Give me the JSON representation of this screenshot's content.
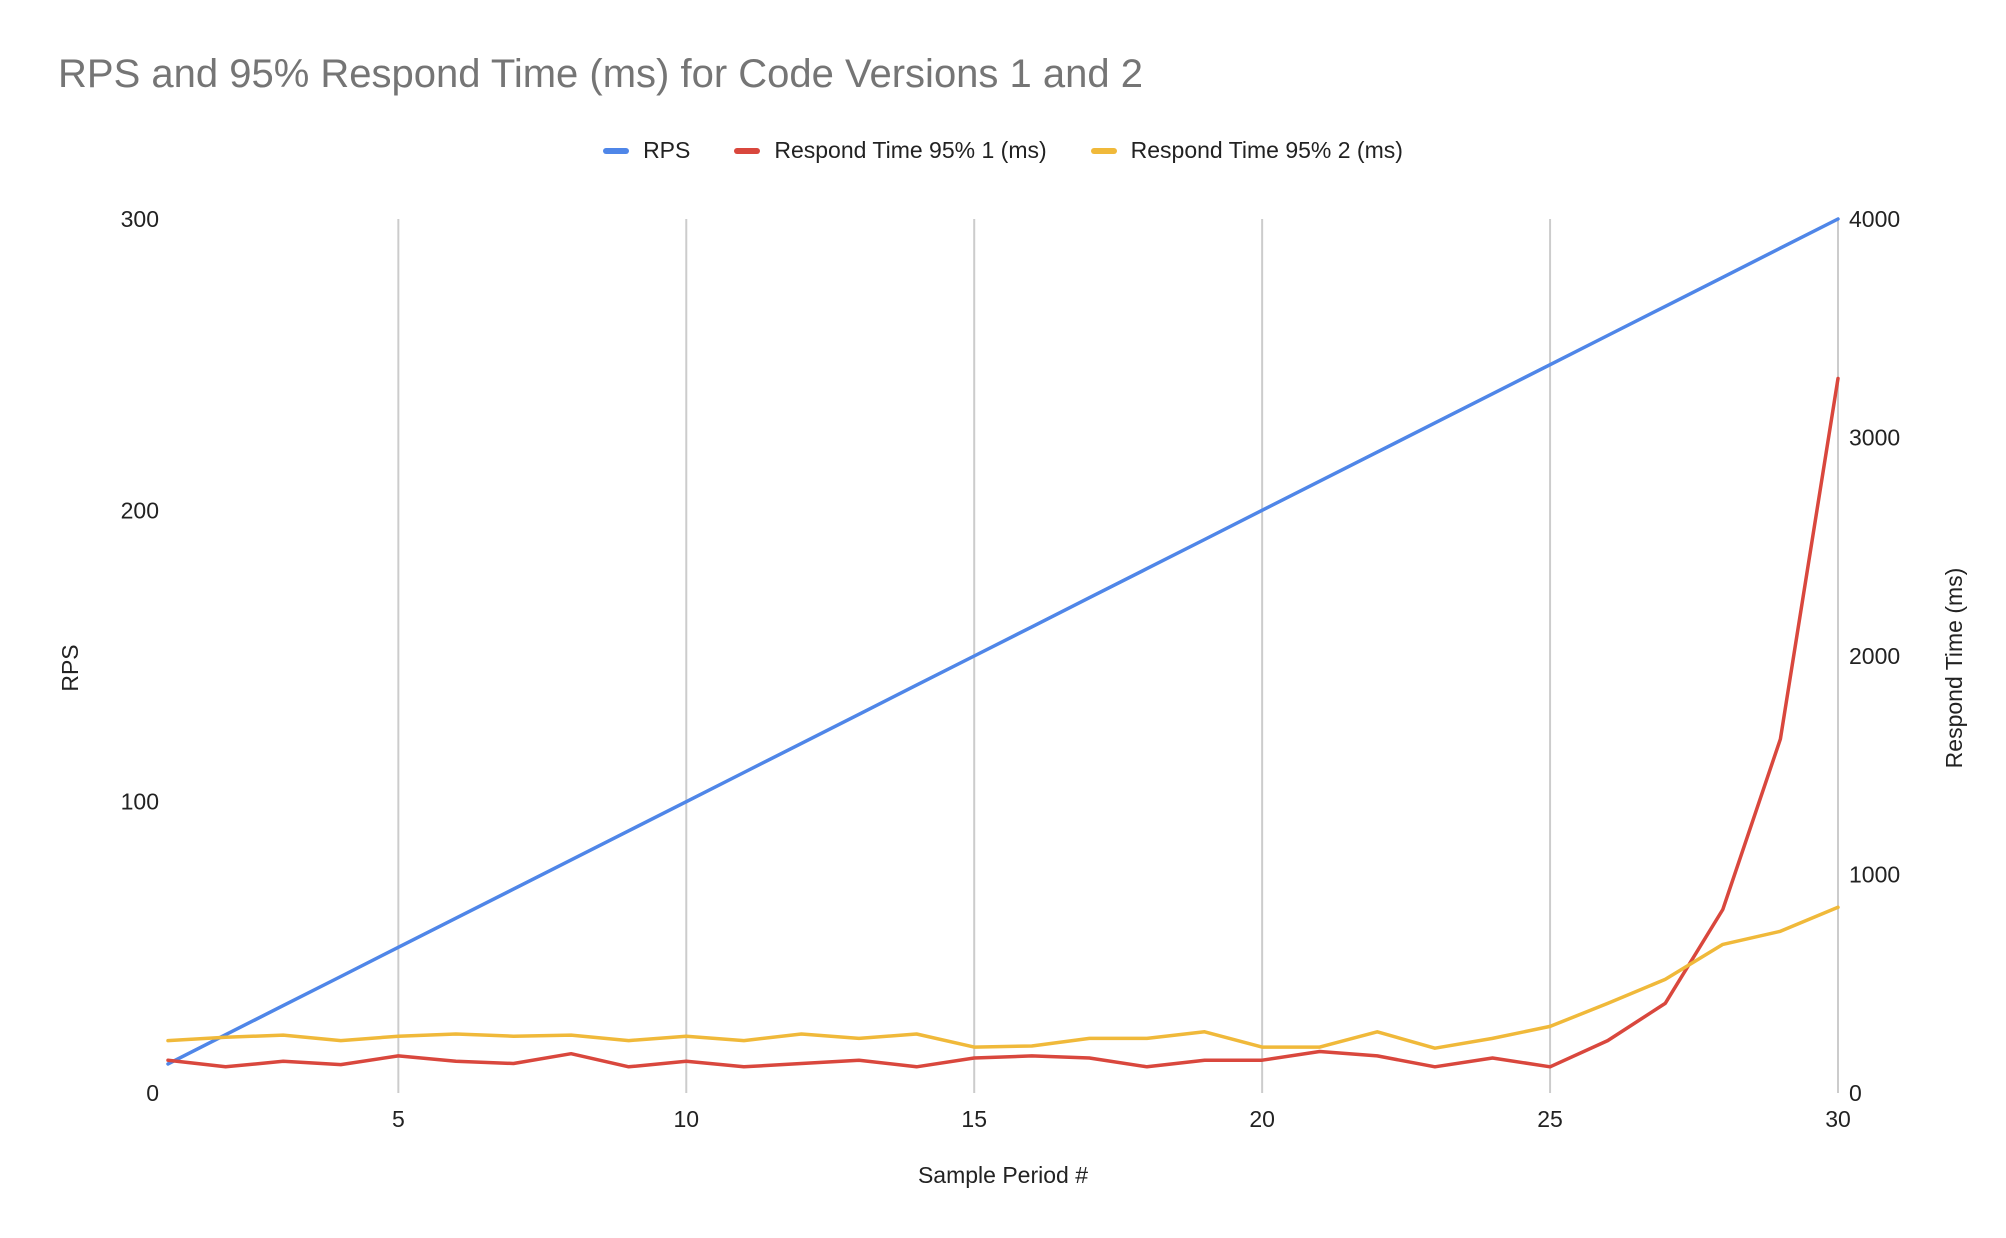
{
  "chart_data": {
    "type": "line",
    "title": "RPS and 95% Respond Time (ms) for Code Versions 1 and 2",
    "xlabel": "Sample Period #",
    "ylabel_left": "RPS",
    "ylabel_right": "Respond Time (ms)",
    "xlim": [
      1,
      30
    ],
    "ylim_left": [
      0,
      300
    ],
    "ylim_right": [
      0,
      4000
    ],
    "x_ticks": [
      5,
      10,
      15,
      20,
      25,
      30
    ],
    "y_left_ticks": [
      0,
      100,
      200,
      300
    ],
    "y_right_ticks": [
      0,
      1000,
      2000,
      3000,
      4000
    ],
    "grid": "vertical",
    "legend_position": "top-center",
    "x": [
      1,
      2,
      3,
      4,
      5,
      6,
      7,
      8,
      9,
      10,
      11,
      12,
      13,
      14,
      15,
      16,
      17,
      18,
      19,
      20,
      21,
      22,
      23,
      24,
      25,
      26,
      27,
      28,
      29,
      30
    ],
    "series": [
      {
        "name": "RPS",
        "axis": "left",
        "color": "#4f86e8",
        "values": [
          10,
          20,
          30,
          40,
          50,
          60,
          70,
          80,
          90,
          100,
          110,
          120,
          130,
          140,
          150,
          160,
          170,
          180,
          190,
          200,
          210,
          220,
          230,
          240,
          250,
          260,
          270,
          280,
          290,
          300
        ]
      },
      {
        "name": "Respond Time 95% 1 (ms)",
        "axis": "right",
        "color": "#d9473d",
        "values": [
          150,
          120,
          145,
          130,
          170,
          145,
          135,
          180,
          120,
          145,
          120,
          135,
          150,
          120,
          160,
          170,
          160,
          120,
          150,
          150,
          190,
          170,
          120,
          160,
          120,
          240,
          410,
          840,
          1620,
          3270
        ]
      },
      {
        "name": "Respond Time 95% 2 (ms)",
        "axis": "right",
        "color": "#f0b93a",
        "values": [
          240,
          255,
          265,
          240,
          260,
          270,
          260,
          265,
          240,
          260,
          240,
          270,
          250,
          270,
          210,
          215,
          250,
          250,
          280,
          210,
          210,
          280,
          205,
          250,
          305,
          410,
          520,
          680,
          740,
          850
        ]
      }
    ]
  }
}
